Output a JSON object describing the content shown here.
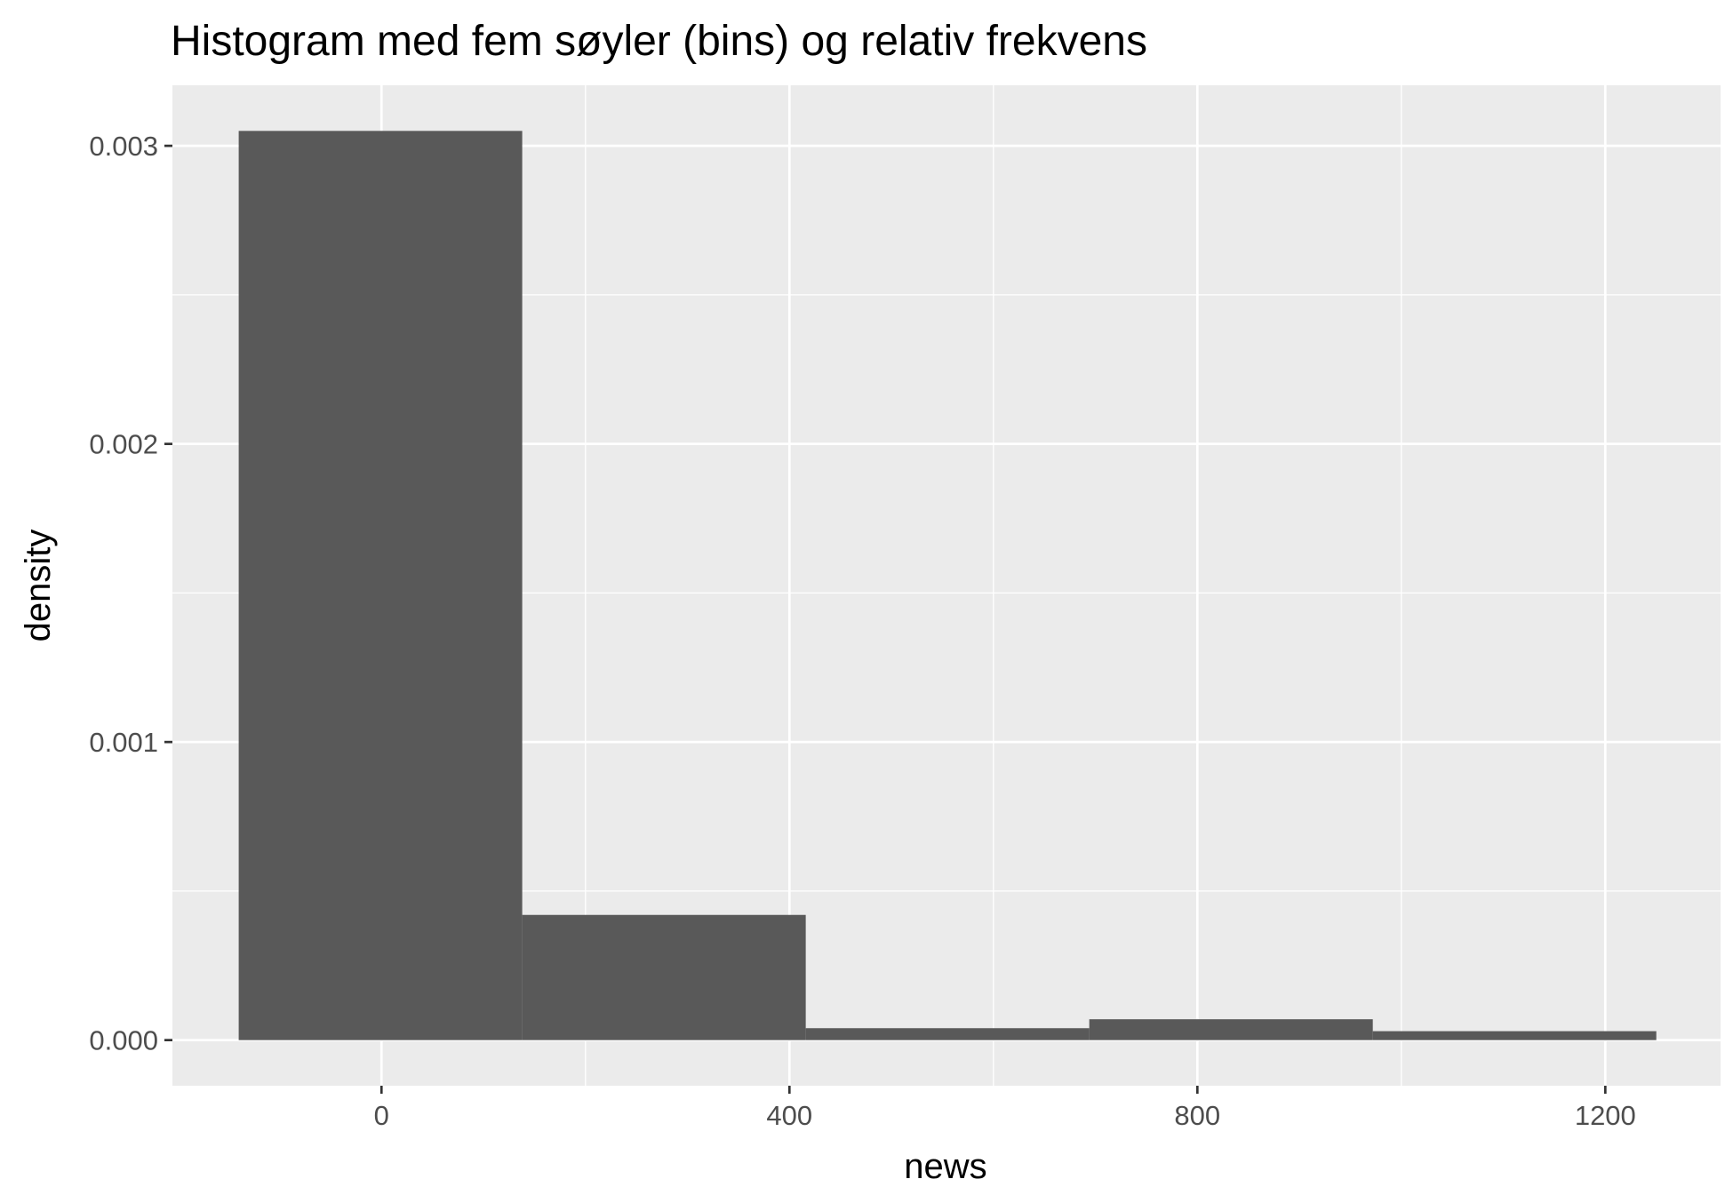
{
  "chart_data": {
    "type": "bar",
    "title": "Histogram med fem søyler (bins) og relativ frekvens",
    "xlabel": "news",
    "ylabel": "density",
    "bins": [
      {
        "x0": -140,
        "x1": 138,
        "density": 0.00305
      },
      {
        "x0": 138,
        "x1": 416,
        "density": 0.00042
      },
      {
        "x0": 416,
        "x1": 694,
        "density": 4e-05
      },
      {
        "x0": 694,
        "x1": 972,
        "density": 7e-05
      },
      {
        "x0": 972,
        "x1": 1250,
        "density": 3e-05
      }
    ],
    "xlim": [
      -205,
      1313
    ],
    "ylim": [
      -0.000153,
      0.003203
    ],
    "x_ticks": [
      0,
      400,
      800,
      1200
    ],
    "x_tick_labels": [
      "0",
      "400",
      "800",
      "1200"
    ],
    "x_minor_ticks": [
      200,
      600,
      1000
    ],
    "y_ticks": [
      0,
      0.001,
      0.002,
      0.003
    ],
    "y_tick_labels": [
      "0.000",
      "0.001",
      "0.002",
      "0.003"
    ],
    "y_minor_ticks": [
      0.0005,
      0.0015,
      0.0025
    ],
    "grid": true,
    "colors": {
      "panel_background": "#ebebeb",
      "bar_fill": "#595959",
      "grid": "#ffffff",
      "tick_label": "#4d4d4d",
      "text": "#000000",
      "axis_tick": "#333333"
    }
  }
}
